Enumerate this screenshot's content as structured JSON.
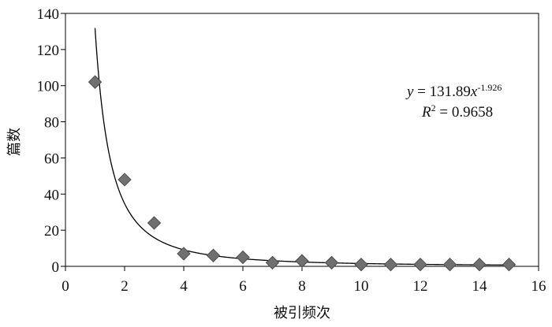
{
  "chart_data": {
    "type": "scatter",
    "xlabel": "被引频次",
    "ylabel": "篇数",
    "xlim": [
      0,
      16
    ],
    "ylim": [
      0,
      140
    ],
    "xticks": [
      0,
      2,
      4,
      6,
      8,
      10,
      12,
      14,
      16
    ],
    "yticks": [
      0,
      20,
      40,
      60,
      80,
      100,
      120,
      140
    ],
    "grid": false,
    "legend": "none",
    "series": [
      {
        "marker": "diamond",
        "color": "#707070",
        "x": [
          1,
          2,
          3,
          4,
          5,
          6,
          7,
          8,
          9,
          10,
          11,
          12,
          13,
          14,
          15
        ],
        "y": [
          102,
          48,
          24,
          7,
          6,
          5,
          2,
          3,
          2,
          1,
          1,
          1,
          1,
          1,
          1
        ]
      }
    ],
    "trendline": {
      "type": "power",
      "a": 131.89,
      "b": -1.926,
      "x_from": 1,
      "x_to": 15,
      "color": "#000000",
      "equation": {
        "y": "y",
        "rhs": " = 131.89",
        "x": "x",
        "exponent": "-1.926"
      },
      "r_squared": {
        "r": "R",
        "power": "2",
        "rhs": " = 0.9658"
      }
    }
  }
}
